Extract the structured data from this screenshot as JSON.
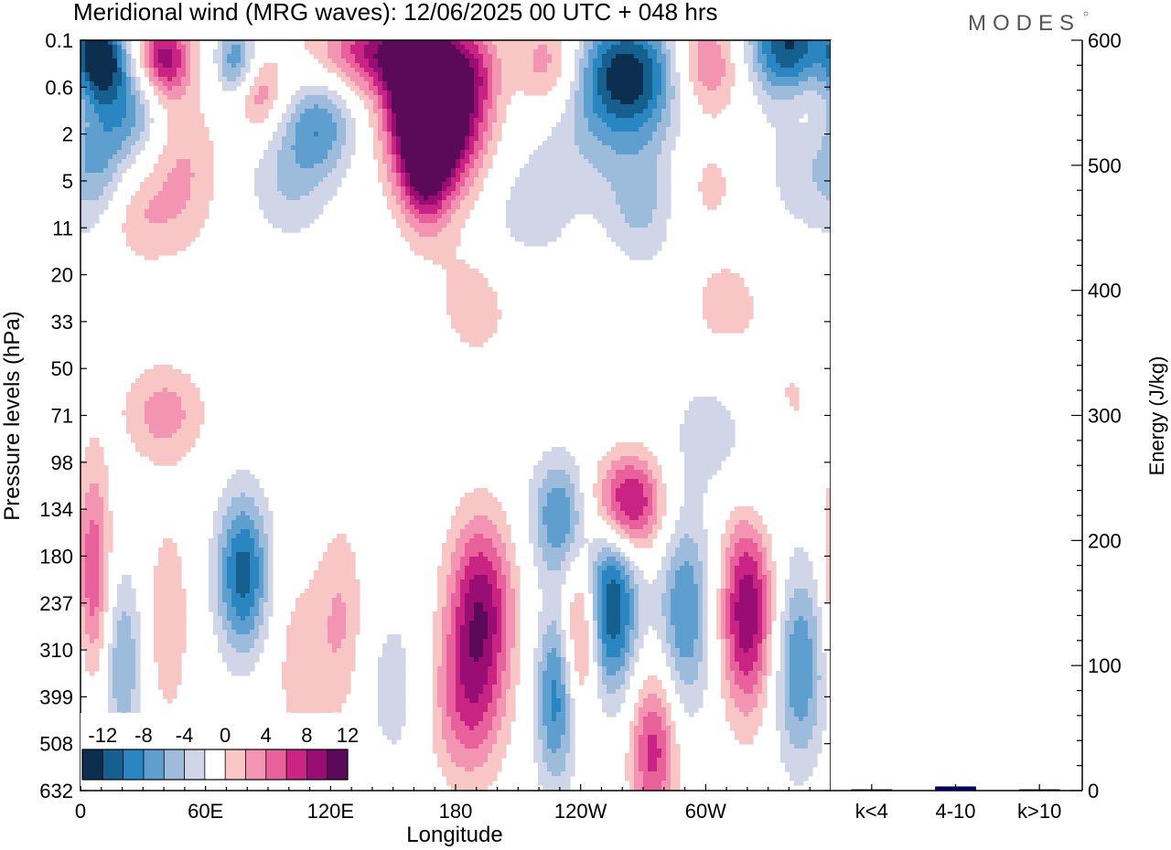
{
  "chart_data": [
    {
      "type": "heatmap",
      "title": "Meridional wind (MRG waves):  12/06/2025  00 UTC  + 048 hrs",
      "xlabel": "Longitude",
      "ylabel": "Pressure levels (hPa)",
      "x_ticks": [
        "0",
        "60E",
        "120E",
        "180",
        "120W",
        "60W"
      ],
      "x_tick_values": [
        0,
        60,
        120,
        180,
        240,
        300
      ],
      "xlim": [
        0,
        360
      ],
      "y_ticks": [
        "0.1",
        "0.6",
        "2",
        "5",
        "11",
        "20",
        "33",
        "50",
        "71",
        "98",
        "134",
        "180",
        "237",
        "310",
        "399",
        "508",
        "632"
      ],
      "colorbar": {
        "labels": [
          "-12",
          "-8",
          "-4",
          "0",
          "4",
          "8",
          "12"
        ],
        "levels": [
          -14,
          -12,
          -10,
          -8,
          -6,
          -4,
          -2,
          2,
          4,
          6,
          8,
          10,
          12,
          14
        ],
        "colors": [
          "#0d2f4f",
          "#15608f",
          "#2a86c0",
          "#5e9fcf",
          "#9dbcdc",
          "#d1d5e8",
          "#ffffff",
          "#f9c6c6",
          "#f395b2",
          "#e8619a",
          "#c92484",
          "#9a0e73",
          "#5a0a59"
        ]
      },
      "blobs": [
        {
          "x": 10,
          "p": 0.18,
          "v": -13,
          "sx": 8,
          "sy": 0.22
        },
        {
          "x": 40,
          "p": 0.2,
          "v": 11,
          "sx": 9,
          "sy": 0.2
        },
        {
          "x": 75,
          "p": 0.22,
          "v": -8,
          "sx": 7,
          "sy": 0.2
        },
        {
          "x": 145,
          "p": 0.15,
          "v": 10,
          "sx": 22,
          "sy": 0.2
        },
        {
          "x": 165,
          "p": 0.55,
          "v": 14,
          "sx": 12,
          "sy": 0.3
        },
        {
          "x": 172,
          "p": 1.8,
          "v": 14,
          "sx": 16,
          "sy": 0.35
        },
        {
          "x": 165,
          "p": 4.2,
          "v": 8,
          "sx": 8,
          "sy": 0.3
        },
        {
          "x": 190,
          "p": 0.3,
          "v": 5,
          "sx": 8,
          "sy": 0.25
        },
        {
          "x": 225,
          "p": 0.25,
          "v": 6,
          "sx": 12,
          "sy": 0.25
        },
        {
          "x": 262,
          "p": 0.35,
          "v": -13,
          "sx": 18,
          "sy": 0.3
        },
        {
          "x": 300,
          "p": 0.25,
          "v": 7,
          "sx": 12,
          "sy": 0.25
        },
        {
          "x": 340,
          "p": 0.12,
          "v": -12,
          "sx": 14,
          "sy": 0.25
        },
        {
          "x": 25,
          "p": 1.0,
          "v": -6,
          "sx": 10,
          "sy": 0.25
        },
        {
          "x": 85,
          "p": 0.7,
          "v": 6,
          "sx": 8,
          "sy": 0.2
        },
        {
          "x": 115,
          "p": 1.6,
          "v": -7,
          "sx": 12,
          "sy": 0.25
        },
        {
          "x": 10,
          "p": 3.5,
          "v": -5,
          "sx": 10,
          "sy": 0.4
        },
        {
          "x": 50,
          "p": 4,
          "v": 4,
          "sx": 12,
          "sy": 0.4
        },
        {
          "x": 100,
          "p": 5,
          "v": -4,
          "sx": 14,
          "sy": 0.3
        },
        {
          "x": 25,
          "p": 9,
          "v": 4,
          "sx": 14,
          "sy": 0.25
        },
        {
          "x": 250,
          "p": 2.5,
          "v": -3,
          "sx": 30,
          "sy": 0.35
        },
        {
          "x": 210,
          "p": 10,
          "v": -3,
          "sx": 18,
          "sy": 0.3
        },
        {
          "x": 270,
          "p": 8,
          "v": -4,
          "sx": 12,
          "sy": 0.3
        },
        {
          "x": 300,
          "p": 5,
          "v": 3,
          "sx": 14,
          "sy": 0.3
        },
        {
          "x": 350,
          "p": 3,
          "v": -4,
          "sx": 16,
          "sy": 0.4
        },
        {
          "x": 190,
          "p": 25,
          "v": 3,
          "sx": 16,
          "sy": 0.4
        },
        {
          "x": 310,
          "p": 28,
          "v": 3,
          "sx": 14,
          "sy": 0.25
        },
        {
          "x": 350,
          "p": 1.0,
          "v": 3,
          "sx": 10,
          "sy": 0.25
        },
        {
          "x": 40,
          "p": 70,
          "v": 5,
          "sx": 14,
          "sy": 0.25
        },
        {
          "x": 340,
          "p": 68,
          "v": 3,
          "sx": 10,
          "sy": 0.3
        },
        {
          "x": 6,
          "p": 200,
          "v": 8,
          "sx": 6,
          "sy": 0.55
        },
        {
          "x": 20,
          "p": 330,
          "v": -6,
          "sx": 7,
          "sy": 0.45
        },
        {
          "x": 42,
          "p": 260,
          "v": 4,
          "sx": 7,
          "sy": 0.5
        },
        {
          "x": 78,
          "p": 200,
          "v": -11,
          "sx": 9,
          "sy": 0.4
        },
        {
          "x": 125,
          "p": 260,
          "v": 4,
          "sx": 8,
          "sy": 0.5
        },
        {
          "x": 105,
          "p": 330,
          "v": 3,
          "sx": 10,
          "sy": 0.5
        },
        {
          "x": 150,
          "p": 380,
          "v": -3,
          "sx": 10,
          "sy": 0.45
        },
        {
          "x": 192,
          "p": 240,
          "v": 11,
          "sx": 11,
          "sy": 0.45
        },
        {
          "x": 186,
          "p": 420,
          "v": 7,
          "sx": 12,
          "sy": 0.4
        },
        {
          "x": 230,
          "p": 140,
          "v": -8,
          "sx": 10,
          "sy": 0.3
        },
        {
          "x": 262,
          "p": 130,
          "v": 12,
          "sx": 12,
          "sy": 0.25
        },
        {
          "x": 240,
          "p": 280,
          "v": 8,
          "sx": 6,
          "sy": 0.4
        },
        {
          "x": 255,
          "p": 240,
          "v": -12,
          "sx": 9,
          "sy": 0.45
        },
        {
          "x": 228,
          "p": 400,
          "v": -9,
          "sx": 7,
          "sy": 0.45
        },
        {
          "x": 275,
          "p": 520,
          "v": 9,
          "sx": 8,
          "sy": 0.4
        },
        {
          "x": 290,
          "p": 250,
          "v": -8,
          "sx": 9,
          "sy": 0.5
        },
        {
          "x": 320,
          "p": 250,
          "v": 12,
          "sx": 9,
          "sy": 0.5
        },
        {
          "x": 345,
          "p": 340,
          "v": -8,
          "sx": 9,
          "sy": 0.5
        },
        {
          "x": 330,
          "p": 100,
          "v": -3,
          "sx": 12,
          "sy": 0.35
        },
        {
          "x": 300,
          "p": 80,
          "v": -3,
          "sx": 12,
          "sy": 0.3
        }
      ]
    },
    {
      "type": "bar",
      "ylabel": "Energy (J/kg)",
      "categories": [
        "k<4",
        "4-10",
        "k>10"
      ],
      "values": [
        0.5,
        3,
        0.3
      ],
      "ylim": [
        0,
        600
      ],
      "y_ticks": [
        "0",
        "100",
        "200",
        "300",
        "400",
        "500",
        "600"
      ],
      "bar_colors": [
        "#000080",
        "#000080",
        "#000080"
      ]
    }
  ],
  "logo_text": "MODES"
}
